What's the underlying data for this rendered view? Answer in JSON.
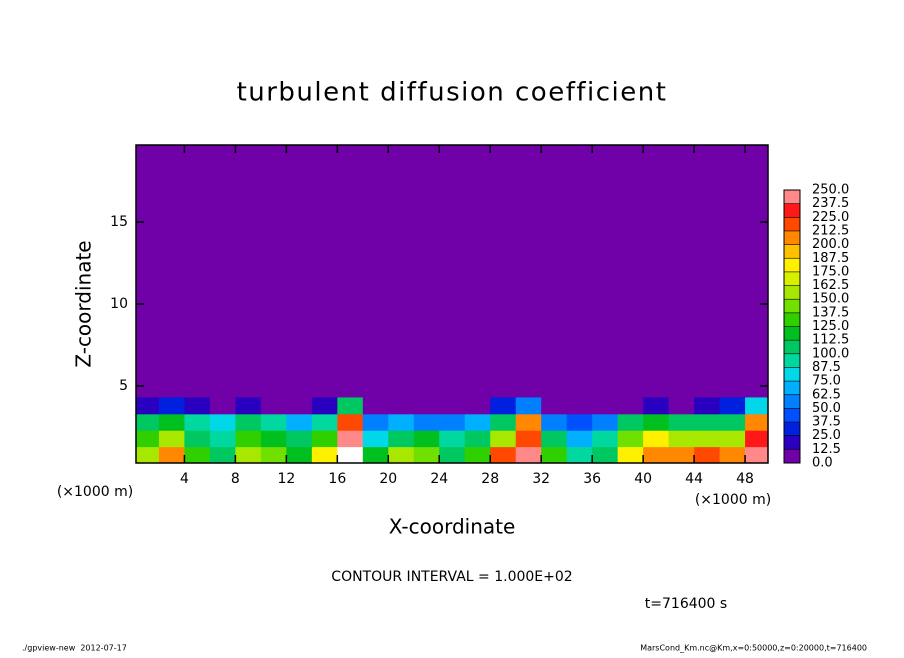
{
  "chart_data": {
    "type": "contour",
    "title": "turbulent diffusion coefficient",
    "x_label": "X-coordinate",
    "y_label": "Z-coordinate",
    "x_unit_left": "(×1000 m)",
    "x_unit_right": "(×1000 m)",
    "contour_note": "CONTOUR INTERVAL = 1.000E+02",
    "time_note": "t=716400 s",
    "footer_left": "./gpview-new  2012-07-17",
    "footer_right": "MarsCond_Km.nc@Km,x=0:50000,z=0:20000,t=716400",
    "xlim": [
      0.2,
      49.8
    ],
    "ylim": [
      0.3,
      19.7
    ],
    "xticks": [
      4,
      8,
      12,
      16,
      20,
      24,
      28,
      32,
      36,
      40,
      44,
      48
    ],
    "yticks": [
      5,
      10,
      15
    ],
    "x": [
      1,
      3,
      5,
      7,
      9,
      11,
      13,
      15,
      17,
      19,
      21,
      23,
      25,
      27,
      29,
      31,
      33,
      35,
      37,
      39,
      41,
      43,
      45,
      47,
      49
    ],
    "z": [
      0.8,
      1.8,
      2.8,
      3.8
    ],
    "values": [
      [
        150,
        200,
        130,
        110,
        150,
        140,
        120,
        180,
        260,
        120,
        160,
        140,
        110,
        130,
        220,
        240,
        130,
        90,
        100,
        180,
        200,
        210,
        220,
        200,
        240
      ],
      [
        130,
        160,
        110,
        90,
        130,
        120,
        100,
        130,
        250,
        80,
        110,
        120,
        90,
        110,
        150,
        220,
        100,
        70,
        90,
        140,
        180,
        160,
        160,
        150,
        230
      ],
      [
        100,
        120,
        90,
        80,
        100,
        90,
        70,
        90,
        220,
        50,
        70,
        60,
        50,
        70,
        110,
        200,
        60,
        40,
        60,
        100,
        120,
        100,
        110,
        100,
        200
      ],
      [
        20,
        30,
        20,
        10,
        20,
        10,
        10,
        20,
        100,
        10,
        0,
        0,
        0,
        10,
        30,
        60,
        10,
        0,
        0,
        10,
        20,
        10,
        20,
        30,
        80
      ]
    ],
    "levels": [
      {
        "value": 0,
        "label": "0.0"
      },
      12.5,
      {
        "value": 25,
        "label": "25.0"
      },
      37.5,
      {
        "value": 50,
        "label": "50.0"
      },
      62.5,
      {
        "value": 75,
        "label": "75.0"
      },
      87.5,
      {
        "value": 100,
        "label": "100.0"
      },
      112.5,
      {
        "value": 125,
        "label": "125.0"
      },
      137.5,
      {
        "value": 150,
        "label": "150.0"
      },
      162.5,
      {
        "value": 175,
        "label": "175.0"
      },
      187.5,
      {
        "value": 200,
        "label": "200.0"
      },
      212.5,
      {
        "value": 225,
        "label": "225.0"
      },
      237.5,
      {
        "value": 250,
        "label": "250.0"
      }
    ],
    "colors": [
      "#7000a8",
      "#2a00c0",
      "#0020e0",
      "#0050ff",
      "#0080ff",
      "#00b0ff",
      "#00d8e8",
      "#00d8a0",
      "#00c860",
      "#00c020",
      "#30d000",
      "#70e000",
      "#a8e800",
      "#d8f000",
      "#fff000",
      "#ffc000",
      "#ff8800",
      "#ff4800",
      "#ff1818",
      "#ff8888"
    ],
    "over_color": "#ffffff"
  }
}
